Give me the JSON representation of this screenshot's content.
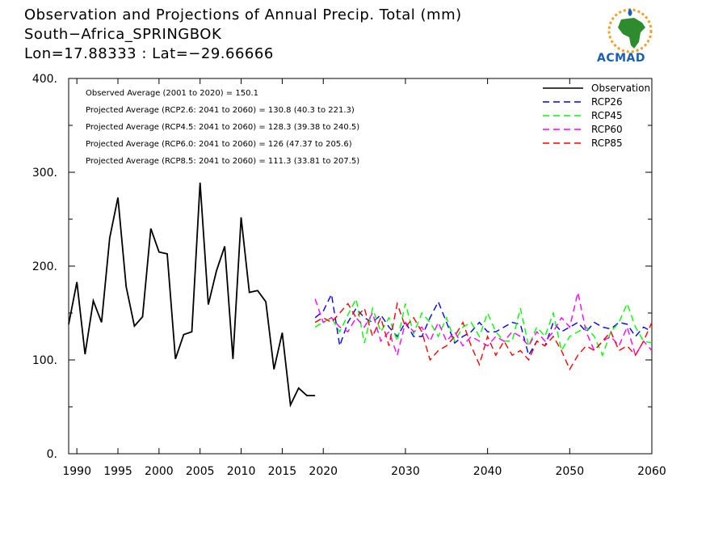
{
  "header": {
    "title_line1": "Observation and Projections of Annual Precip. Total (mm)",
    "title_line2": "South−Africa_SPRINGBOK",
    "title_line3": "Lon=17.88333 : Lat=−29.66666"
  },
  "logo": {
    "text": "ACMAD"
  },
  "chart_data": {
    "type": "line",
    "title": "Observation and Projections of Annual Precip. Total (mm)",
    "xlim": [
      1989,
      2060
    ],
    "ylim": [
      0,
      400
    ],
    "x_ticks": [
      1990,
      1995,
      2000,
      2005,
      2010,
      2015,
      2020,
      2030,
      2040,
      2050,
      2060
    ],
    "y_ticks": [
      0,
      100,
      200,
      300,
      400
    ],
    "y_tick_labels": [
      "0.",
      "100.",
      "200.",
      "300.",
      "400."
    ],
    "grid": false,
    "legend_position": "top-right",
    "annotations": [
      "Observed Average (2001 to 2020) = 150.1",
      "Projected Average (RCP2.6: 2041 to 2060) = 130.8 (40.3 to 221.3)",
      "Projected Average (RCP4.5: 2041 to 2060) = 128.3 (39.38 to 240.5)",
      "Projected Average (RCP6.0: 2041 to 2060) = 126 (47.37 to 205.6)",
      "Projected Average (RCP8.5: 2041 to 2060) = 111.3 (33.81 to 207.5)"
    ],
    "series": [
      {
        "name": "Observation",
        "color": "#000000",
        "dashed": false,
        "x": [
          1989,
          1990,
          1991,
          1992,
          1993,
          1994,
          1995,
          1996,
          1997,
          1998,
          1999,
          2000,
          2001,
          2002,
          2003,
          2004,
          2005,
          2006,
          2007,
          2008,
          2009,
          2010,
          2011,
          2012,
          2013,
          2014,
          2015,
          2016,
          2017,
          2018,
          2019
        ],
        "values": [
          138,
          183,
          106,
          163,
          140,
          230,
          273,
          178,
          136,
          146,
          240,
          215,
          213,
          101,
          127,
          130,
          289,
          159,
          195,
          221,
          101,
          252,
          172,
          174,
          162,
          90,
          129,
          52,
          70,
          62,
          62
        ]
      },
      {
        "name": "RCP26",
        "color": "#0000ff",
        "dashed": true,
        "x": [
          2019,
          2020,
          2021,
          2022,
          2023,
          2024,
          2025,
          2026,
          2027,
          2028,
          2029,
          2030,
          2031,
          2032,
          2033,
          2034,
          2035,
          2036,
          2037,
          2038,
          2039,
          2040,
          2041,
          2042,
          2043,
          2044,
          2045,
          2046,
          2047,
          2048,
          2049,
          2050,
          2051,
          2052,
          2053,
          2054,
          2055,
          2056,
          2057,
          2058,
          2059,
          2060
        ],
        "values": [
          145,
          152,
          170,
          115,
          140,
          155,
          145,
          140,
          148,
          135,
          125,
          140,
          125,
          125,
          145,
          162,
          140,
          118,
          125,
          130,
          140,
          130,
          130,
          135,
          140,
          138,
          105,
          120,
          115,
          140,
          130,
          135,
          140,
          130,
          140,
          135,
          133,
          140,
          138,
          125,
          135,
          130
        ]
      },
      {
        "name": "RCP45",
        "color": "#00ff00",
        "dashed": true,
        "x": [
          2019,
          2020,
          2021,
          2022,
          2023,
          2024,
          2025,
          2026,
          2027,
          2028,
          2029,
          2030,
          2031,
          2032,
          2033,
          2034,
          2035,
          2036,
          2037,
          2038,
          2039,
          2040,
          2041,
          2042,
          2043,
          2044,
          2045,
          2046,
          2047,
          2048,
          2049,
          2050,
          2051,
          2052,
          2053,
          2054,
          2055,
          2056,
          2057,
          2058,
          2059,
          2060
        ],
        "values": [
          135,
          140,
          145,
          130,
          148,
          165,
          118,
          155,
          130,
          145,
          120,
          160,
          128,
          150,
          140,
          125,
          145,
          120,
          135,
          140,
          125,
          150,
          130,
          120,
          120,
          155,
          115,
          135,
          125,
          150,
          110,
          125,
          130,
          135,
          125,
          105,
          130,
          140,
          160,
          135,
          120,
          118
        ]
      },
      {
        "name": "RCP60",
        "color": "#ff00ff",
        "dashed": true,
        "x": [
          2019,
          2020,
          2021,
          2022,
          2023,
          2024,
          2025,
          2026,
          2027,
          2028,
          2029,
          2030,
          2031,
          2032,
          2033,
          2034,
          2035,
          2036,
          2037,
          2038,
          2039,
          2040,
          2041,
          2042,
          2043,
          2044,
          2045,
          2046,
          2047,
          2048,
          2049,
          2050,
          2051,
          2052,
          2053,
          2054,
          2055,
          2056,
          2057,
          2058,
          2059,
          2060
        ],
        "values": [
          165,
          140,
          145,
          135,
          130,
          145,
          135,
          150,
          120,
          130,
          105,
          140,
          130,
          135,
          120,
          140,
          120,
          130,
          115,
          125,
          120,
          115,
          125,
          120,
          130,
          125,
          115,
          130,
          120,
          130,
          145,
          135,
          172,
          130,
          110,
          120,
          125,
          115,
          135,
          105,
          120,
          110
        ]
      },
      {
        "name": "RCP85",
        "color": "#ff0000",
        "dashed": true,
        "x": [
          2019,
          2020,
          2021,
          2022,
          2023,
          2024,
          2025,
          2026,
          2027,
          2028,
          2029,
          2030,
          2031,
          2032,
          2033,
          2034,
          2035,
          2036,
          2037,
          2038,
          2039,
          2040,
          2041,
          2042,
          2043,
          2044,
          2045,
          2046,
          2047,
          2048,
          2049,
          2050,
          2051,
          2052,
          2053,
          2054,
          2055,
          2056,
          2057,
          2058,
          2059,
          2060
        ],
        "values": [
          140,
          145,
          140,
          150,
          160,
          145,
          155,
          125,
          145,
          115,
          160,
          135,
          145,
          130,
          100,
          110,
          115,
          125,
          140,
          115,
          95,
          125,
          105,
          120,
          105,
          110,
          100,
          120,
          115,
          125,
          110,
          90,
          105,
          115,
          110,
          120,
          130,
          110,
          115,
          105,
          120,
          140
        ]
      }
    ]
  }
}
